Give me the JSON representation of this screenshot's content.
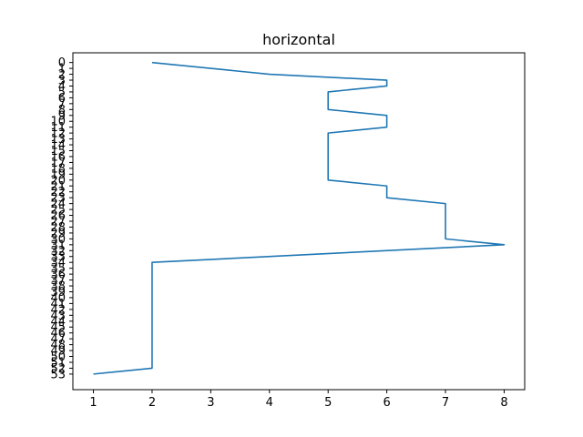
{
  "chart_data": {
    "type": "line",
    "title": "horizontal",
    "xlabel": "",
    "ylabel": "",
    "orientation": "horizontal",
    "y_axis_inverted": true,
    "xlim": [
      0.65,
      8.35
    ],
    "ylim": [
      -1.65,
      55.65
    ],
    "xticks": [
      1,
      2,
      3,
      4,
      5,
      6,
      7,
      8
    ],
    "yticks": [
      0,
      1,
      2,
      3,
      4,
      5,
      6,
      7,
      8,
      9,
      10,
      11,
      12,
      13,
      14,
      15,
      16,
      17,
      18,
      19,
      20,
      21,
      22,
      23,
      24,
      25,
      26,
      27,
      28,
      29,
      30,
      31,
      32,
      33,
      34,
      35,
      36,
      37,
      38,
      39,
      40,
      41,
      42,
      43,
      44,
      45,
      46,
      47,
      48,
      49,
      50,
      51,
      52,
      53
    ],
    "grid": false,
    "color": "#1f77b4",
    "series": [
      {
        "points": [
          {
            "x": 2,
            "y": 0
          },
          {
            "x": 4,
            "y": 2
          },
          {
            "x": 6,
            "y": 3
          },
          {
            "x": 6,
            "y": 4
          },
          {
            "x": 5,
            "y": 5
          },
          {
            "x": 5,
            "y": 8
          },
          {
            "x": 6,
            "y": 9
          },
          {
            "x": 6,
            "y": 11
          },
          {
            "x": 5,
            "y": 12
          },
          {
            "x": 5,
            "y": 20
          },
          {
            "x": 6,
            "y": 21
          },
          {
            "x": 6,
            "y": 23
          },
          {
            "x": 7,
            "y": 24
          },
          {
            "x": 7,
            "y": 30
          },
          {
            "x": 8,
            "y": 31
          },
          {
            "x": 2,
            "y": 34
          },
          {
            "x": 2,
            "y": 52
          },
          {
            "x": 1,
            "y": 53
          }
        ]
      }
    ]
  }
}
